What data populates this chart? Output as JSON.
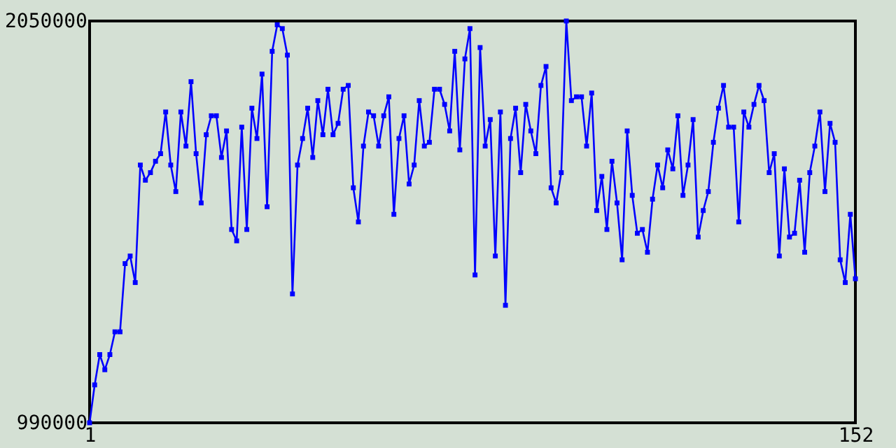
{
  "chart_data": {
    "type": "line",
    "x": [
      1,
      2,
      3,
      4,
      5,
      6,
      7,
      8,
      9,
      10,
      11,
      12,
      13,
      14,
      15,
      16,
      17,
      18,
      19,
      20,
      21,
      22,
      23,
      24,
      25,
      26,
      27,
      28,
      29,
      30,
      31,
      32,
      33,
      34,
      35,
      36,
      37,
      38,
      39,
      40,
      41,
      42,
      43,
      44,
      45,
      46,
      47,
      48,
      49,
      50,
      51,
      52,
      53,
      54,
      55,
      56,
      57,
      58,
      59,
      60,
      61,
      62,
      63,
      64,
      65,
      66,
      67,
      68,
      69,
      70,
      71,
      72,
      73,
      74,
      75,
      76,
      77,
      78,
      79,
      80,
      81,
      82,
      83,
      84,
      85,
      86,
      87,
      88,
      89,
      90,
      91,
      92,
      93,
      94,
      95,
      96,
      97,
      98,
      99,
      100,
      101,
      102,
      103,
      104,
      105,
      106,
      107,
      108,
      109,
      110,
      111,
      112,
      113,
      114,
      115,
      116,
      117,
      118,
      119,
      120,
      121,
      122,
      123,
      124,
      125,
      126,
      127,
      128,
      129,
      130,
      131,
      132,
      133,
      134,
      135,
      136,
      137,
      138,
      139,
      140,
      141,
      142,
      143,
      144,
      145,
      146,
      147,
      148,
      149,
      150,
      151,
      152
    ],
    "series": [
      {
        "color": "#0000ff",
        "values": [
          990000,
          1090000,
          1170000,
          1130000,
          1170000,
          1230000,
          1230000,
          1410000,
          1430000,
          1360000,
          1670000,
          1630000,
          1650000,
          1680000,
          1700000,
          1810000,
          1670000,
          1600000,
          1810000,
          1720000,
          1890000,
          1700000,
          1570000,
          1750000,
          1800000,
          1800000,
          1690000,
          1760000,
          1500000,
          1470000,
          1770000,
          1500000,
          1820000,
          1740000,
          1910000,
          1560000,
          1970000,
          2040000,
          2030000,
          1960000,
          1330000,
          1670000,
          1740000,
          1820000,
          1690000,
          1840000,
          1750000,
          1870000,
          1750000,
          1780000,
          1870000,
          1880000,
          1610000,
          1520000,
          1720000,
          1810000,
          1800000,
          1720000,
          1800000,
          1850000,
          1540000,
          1740000,
          1800000,
          1620000,
          1670000,
          1840000,
          1720000,
          1730000,
          1870000,
          1870000,
          1830000,
          1760000,
          1970000,
          1710000,
          1950000,
          2030000,
          1380000,
          1980000,
          1720000,
          1790000,
          1430000,
          1810000,
          1300000,
          1740000,
          1820000,
          1650000,
          1830000,
          1760000,
          1700000,
          1880000,
          1930000,
          1610000,
          1570000,
          1650000,
          2050000,
          1840000,
          1850000,
          1850000,
          1720000,
          1860000,
          1550000,
          1640000,
          1500000,
          1680000,
          1570000,
          1420000,
          1760000,
          1590000,
          1490000,
          1500000,
          1440000,
          1580000,
          1670000,
          1610000,
          1710000,
          1660000,
          1800000,
          1590000,
          1670000,
          1790000,
          1480000,
          1550000,
          1600000,
          1730000,
          1820000,
          1880000,
          1770000,
          1770000,
          1520000,
          1810000,
          1770000,
          1830000,
          1880000,
          1840000,
          1650000,
          1700000,
          1430000,
          1660000,
          1480000,
          1490000,
          1630000,
          1440000,
          1650000,
          1720000,
          1810000,
          1600000,
          1780000,
          1730000,
          1420000,
          1360000,
          1540000,
          1370000
        ]
      }
    ],
    "xlim": [
      1,
      152
    ],
    "xticks": [
      1,
      152
    ],
    "ylim": [
      990000,
      2050000
    ],
    "yticks": [
      990000,
      2050000
    ],
    "grid": false,
    "marker": "square",
    "line_style": "solid"
  }
}
